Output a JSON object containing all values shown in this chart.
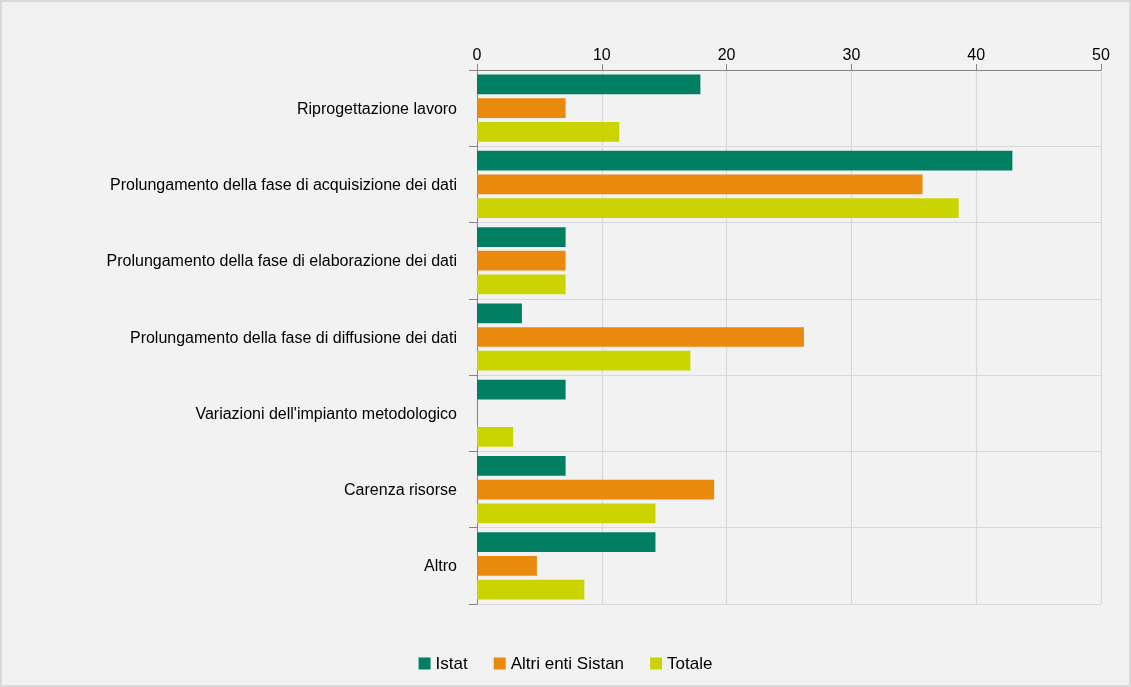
{
  "chart_data": {
    "type": "bar",
    "orientation": "horizontal",
    "categories": [
      "Riprogettazione lavoro",
      "Prolungamento della fase di acquisizione dei dati",
      "Prolungamento della fase di elaborazione dei dati",
      "Prolungamento della fase di diffusione dei dati",
      "Variazioni dell'impianto metodologico",
      "Carenza risorse",
      "Altro"
    ],
    "series": [
      {
        "name": "Istat",
        "color": "#007f62",
        "values": [
          17.9,
          42.9,
          7.1,
          3.6,
          7.1,
          7.1,
          14.3
        ]
      },
      {
        "name": "Altri enti Sistan",
        "color": "#e98a0f",
        "values": [
          7.1,
          35.7,
          7.1,
          26.2,
          0,
          19.0,
          4.8
        ]
      },
      {
        "name": "Totale",
        "color": "#cbd400",
        "values": [
          11.4,
          38.6,
          7.1,
          17.1,
          2.9,
          14.3,
          8.6
        ]
      }
    ],
    "xlim": [
      0,
      50
    ],
    "xticks": [
      0,
      10,
      20,
      30,
      40,
      50
    ],
    "grid": true,
    "legend": "bottom"
  }
}
